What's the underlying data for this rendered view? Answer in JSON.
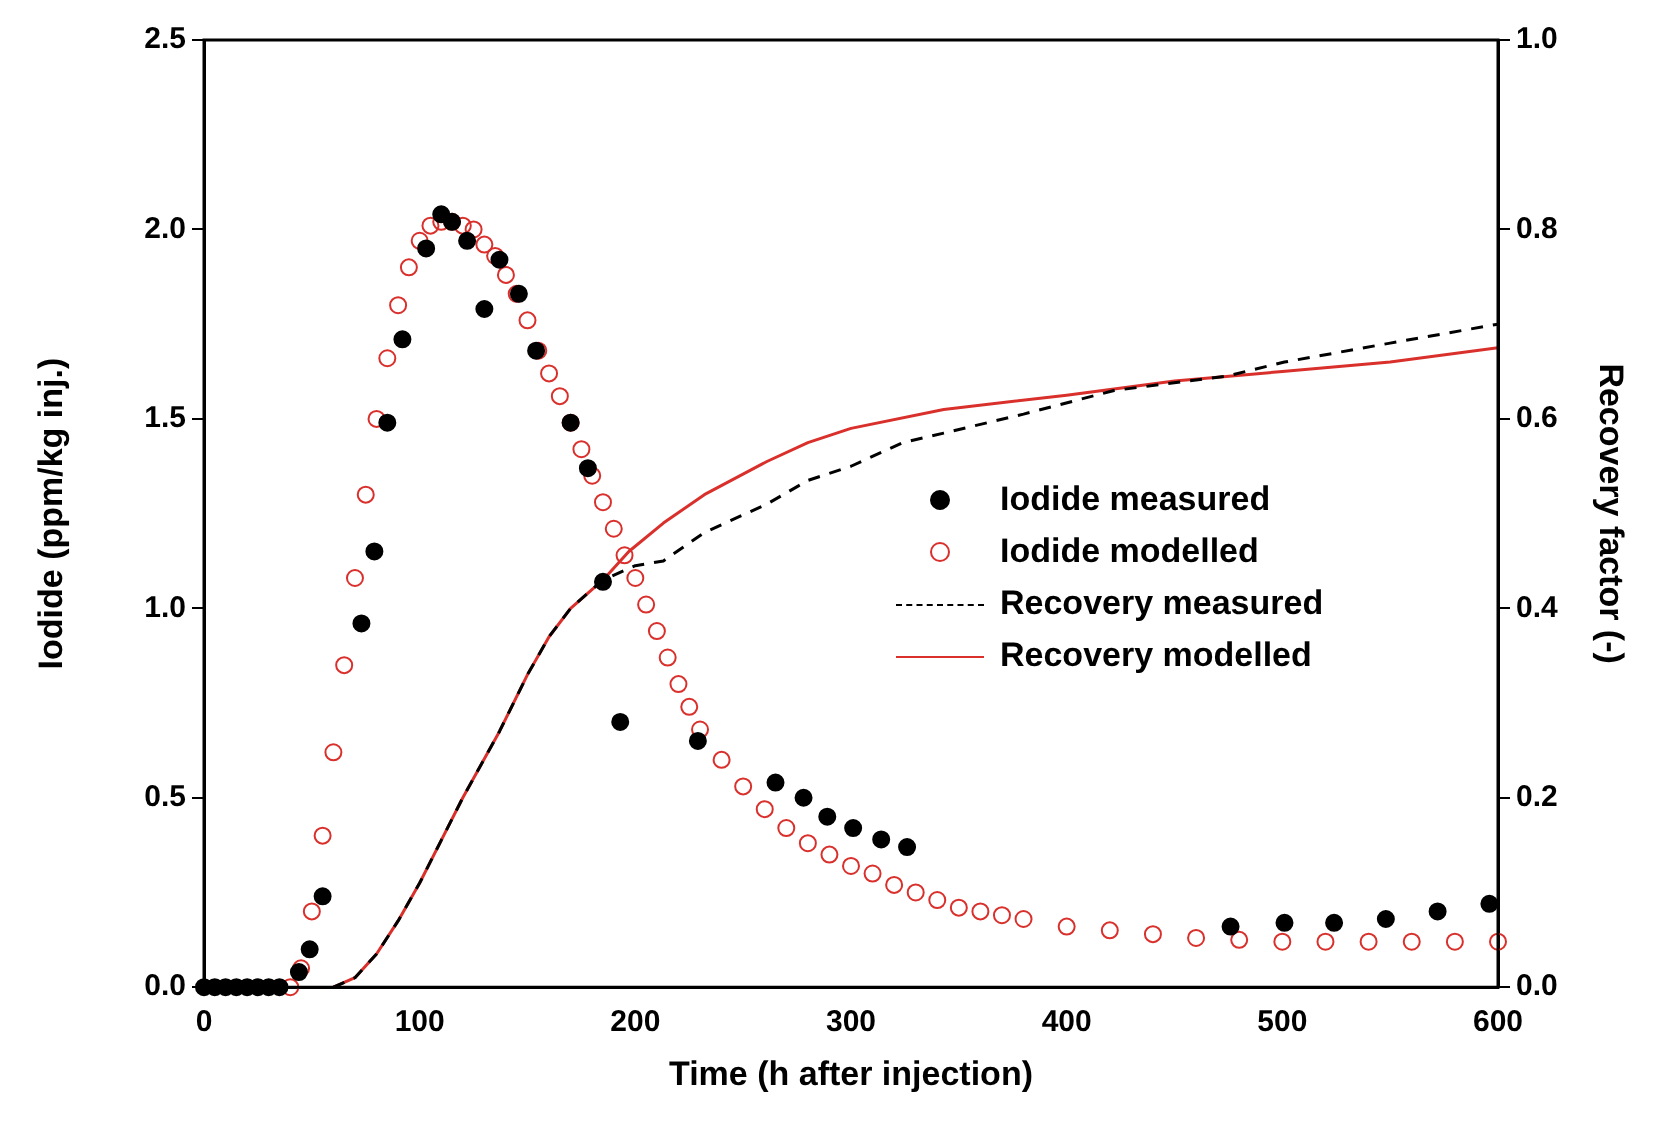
{
  "chart_data": {
    "type": "scatter",
    "xlabel": "Time (h after injection)",
    "ylabel": "Iodide (ppm/kg inj.)",
    "y2label": "Recovery factor (-)",
    "xlim": [
      0,
      600
    ],
    "xticks": [
      0,
      100,
      200,
      300,
      400,
      500,
      600
    ],
    "ylim": [
      0,
      2.5
    ],
    "yticks": [
      {
        "value": 0,
        "label": "0.0"
      },
      {
        "value": 0.5,
        "label": "0.5"
      },
      {
        "value": 1,
        "label": "1.0"
      },
      {
        "value": 1.5,
        "label": "1.5"
      },
      {
        "value": 2,
        "label": "2.0"
      },
      {
        "value": 2.5,
        "label": "2.5"
      }
    ],
    "y2lim": [
      0,
      1
    ],
    "y2ticks": [
      {
        "value": 0,
        "label": "0.0"
      },
      {
        "value": 0.2,
        "label": "0.2"
      },
      {
        "value": 0.4,
        "label": "0.4"
      },
      {
        "value": 0.6,
        "label": "0.6"
      },
      {
        "value": 0.8,
        "label": "0.8"
      },
      {
        "value": 1,
        "label": "1.0"
      }
    ],
    "grid": false,
    "legend": "right",
    "series": [
      {
        "name": "Iodide measured",
        "marker": "circle",
        "color": "#000000",
        "x": [
          0,
          5,
          10,
          15,
          20,
          25,
          30,
          35,
          44,
          49,
          55,
          73,
          79,
          85,
          92,
          103,
          110,
          115,
          122,
          130,
          137,
          146,
          154,
          170,
          178,
          185,
          193,
          229,
          265,
          278,
          289,
          301,
          314,
          326,
          476,
          501,
          524,
          548,
          572,
          596
        ],
        "values": [
          0,
          0,
          0,
          0,
          0,
          0,
          0,
          0,
          0.04,
          0.1,
          0.24,
          0.96,
          1.15,
          1.49,
          1.71,
          1.95,
          2.04,
          2.02,
          1.97,
          1.79,
          1.92,
          1.83,
          1.68,
          1.49,
          1.37,
          1.07,
          0.7,
          0.65,
          0.54,
          0.5,
          0.45,
          0.42,
          0.39,
          0.37,
          0.16,
          0.17,
          0.17,
          0.18,
          0.2,
          0.22
        ]
      },
      {
        "name": "Iodide modelled",
        "marker": "circle",
        "color": "#d9302c",
        "x": [
          40,
          45,
          50,
          55,
          60,
          65,
          70,
          75,
          80,
          85,
          90,
          95,
          100,
          105,
          110,
          115,
          120,
          125,
          130,
          135,
          140,
          145,
          150,
          155,
          160,
          165,
          170,
          175,
          180,
          185,
          190,
          195,
          200,
          205,
          210,
          215,
          220,
          225,
          230,
          240,
          250,
          260,
          270,
          280,
          290,
          300,
          310,
          320,
          330,
          340,
          350,
          360,
          370,
          380,
          400,
          420,
          440,
          460,
          480,
          500,
          520,
          540,
          560,
          580,
          600
        ],
        "values": [
          0,
          0.05,
          0.2,
          0.4,
          0.62,
          0.85,
          1.08,
          1.3,
          1.5,
          1.66,
          1.8,
          1.9,
          1.97,
          2.01,
          2.02,
          2.02,
          2.01,
          2,
          1.96,
          1.93,
          1.88,
          1.83,
          1.76,
          1.68,
          1.62,
          1.56,
          1.49,
          1.42,
          1.35,
          1.28,
          1.21,
          1.14,
          1.08,
          1.01,
          0.94,
          0.87,
          0.8,
          0.74,
          0.68,
          0.6,
          0.53,
          0.47,
          0.42,
          0.38,
          0.35,
          0.32,
          0.3,
          0.27,
          0.25,
          0.23,
          0.21,
          0.2,
          0.19,
          0.18,
          0.16,
          0.15,
          0.14,
          0.13,
          0.125,
          0.12,
          0.12,
          0.12,
          0.12,
          0.12,
          0.12
        ]
      },
      {
        "name": "Recovery measured",
        "type": "line",
        "axis": "y2",
        "line_style": "dashed",
        "marker": "none",
        "color": "#000000",
        "x": [
          60,
          70,
          80,
          90,
          100,
          110,
          120,
          137,
          150,
          160,
          170,
          185,
          200,
          213,
          232,
          261,
          280,
          300,
          324,
          343,
          380,
          422,
          474,
          501,
          550,
          600
        ],
        "values": [
          0,
          0.01,
          0.035,
          0.07,
          0.11,
          0.155,
          0.2,
          0.27,
          0.33,
          0.37,
          0.4,
          0.43,
          0.445,
          0.45,
          0.48,
          0.51,
          0.535,
          0.55,
          0.575,
          0.585,
          0.605,
          0.63,
          0.645,
          0.66,
          0.68,
          0.7
        ]
      },
      {
        "name": "Recovery modelled",
        "type": "line",
        "axis": "y2",
        "line_style": "solid",
        "marker": "none",
        "color": "#d9302c",
        "x": [
          60,
          70,
          80,
          90,
          100,
          110,
          120,
          137,
          150,
          160,
          170,
          185,
          197,
          213,
          232,
          261,
          280,
          300,
          343,
          400,
          450,
          500,
          550,
          600
        ],
        "values": [
          0,
          0.01,
          0.035,
          0.07,
          0.11,
          0.155,
          0.2,
          0.27,
          0.33,
          0.37,
          0.4,
          0.43,
          0.46,
          0.49,
          0.52,
          0.555,
          0.575,
          0.59,
          0.61,
          0.625,
          0.64,
          0.65,
          0.66,
          0.675
        ]
      }
    ]
  }
}
